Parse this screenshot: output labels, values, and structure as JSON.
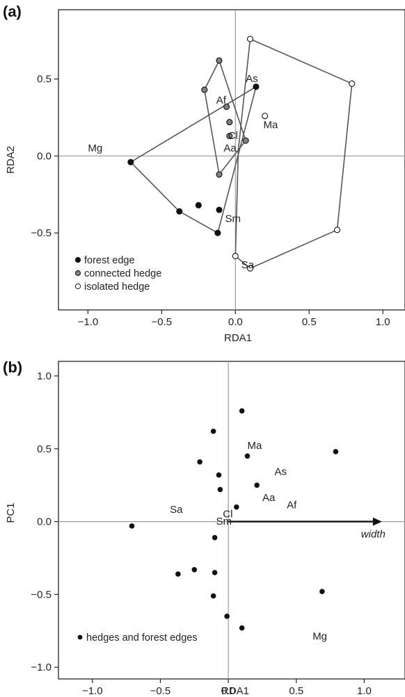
{
  "chart_data": [
    {
      "panel_label": "(a)",
      "type": "scatter",
      "xlabel": "RDA1",
      "ylabel": "RDA2",
      "xlim": [
        -1.2,
        1.15
      ],
      "ylim": [
        -1.0,
        0.95
      ],
      "xticks": [
        -1.0,
        -0.5,
        0.0,
        0.5,
        1.0
      ],
      "xtick_labels": [
        "−1.0",
        "−0.5",
        "0.0",
        "0.5",
        "1.0"
      ],
      "yticks": [
        -0.5,
        0.0,
        0.5
      ],
      "ytick_labels": [
        "−0.5",
        "0.0",
        "0.5"
      ],
      "zero_lines": true,
      "legend_position": "bottom-left",
      "series": [
        {
          "name": "forest edge",
          "color": "#111111",
          "x": [
            -0.71,
            -0.38,
            -0.25,
            -0.11,
            -0.12,
            0.14
          ],
          "y": [
            -0.04,
            -0.36,
            -0.32,
            -0.35,
            -0.5,
            0.45
          ],
          "hull": [
            [
              -0.71,
              -0.04
            ],
            [
              0.14,
              0.45
            ],
            [
              -0.12,
              -0.5
            ],
            [
              -0.38,
              -0.36
            ]
          ]
        },
        {
          "name": "connected hedge",
          "color": "#808080",
          "x": [
            -0.11,
            -0.21,
            -0.06,
            -0.04,
            -0.04,
            0.07,
            -0.11
          ],
          "y": [
            0.62,
            0.43,
            0.32,
            0.22,
            0.13,
            0.1,
            -0.12
          ],
          "hull": [
            [
              -0.11,
              0.62
            ],
            [
              0.07,
              0.1
            ],
            [
              -0.11,
              -0.12
            ],
            [
              -0.21,
              0.43
            ]
          ]
        },
        {
          "name": "isolated hedge",
          "color": "#ffffff",
          "x": [
            0.1,
            0.79,
            0.69,
            0.0,
            0.1,
            0.2
          ],
          "y": [
            0.76,
            0.47,
            -0.48,
            -0.65,
            -0.73,
            0.26
          ],
          "hull": [
            [
              0.1,
              0.76
            ],
            [
              0.79,
              0.47
            ],
            [
              0.69,
              -0.48
            ],
            [
              0.1,
              -0.73
            ],
            [
              0.0,
              -0.65
            ],
            [
              0.02,
              0.04
            ]
          ]
        }
      ],
      "species_labels": [
        {
          "text": "As",
          "x": 0.07,
          "y": 0.48
        },
        {
          "text": "Af",
          "x": -0.13,
          "y": 0.34
        },
        {
          "text": "Ma",
          "x": 0.19,
          "y": 0.18
        },
        {
          "text": "Cl",
          "x": -0.05,
          "y": 0.11
        },
        {
          "text": "Aa",
          "x": -0.08,
          "y": 0.03
        },
        {
          "text": "Mg",
          "x": -1.0,
          "y": 0.03
        },
        {
          "text": "Sm",
          "x": -0.07,
          "y": -0.43
        },
        {
          "text": "Sa",
          "x": 0.04,
          "y": -0.73
        }
      ]
    },
    {
      "panel_label": "(b)",
      "type": "scatter",
      "xlabel": "RDA1",
      "ylabel": "PC1",
      "xlim": [
        -1.25,
        1.3
      ],
      "ylim": [
        -1.08,
        1.1
      ],
      "xticks": [
        -1.0,
        -0.5,
        0.0,
        0.5,
        1.0
      ],
      "xtick_labels": [
        "−1.0",
        "−0.5",
        "0.0",
        "0.5",
        "1.0"
      ],
      "yticks": [
        -1.0,
        -0.5,
        0.0,
        0.5,
        1.0
      ],
      "ytick_labels": [
        "−1.0",
        "−0.5",
        "0.0",
        "0.5",
        "1.0"
      ],
      "zero_lines": true,
      "legend_position": "bottom-left",
      "series": [
        {
          "name": "hedges and forest edges",
          "color": "#111111",
          "x": [
            0.1,
            -0.11,
            -0.21,
            0.14,
            0.79,
            -0.07,
            -0.06,
            0.21,
            0.06,
            -0.71,
            -0.1,
            -0.37,
            -0.25,
            -0.1,
            0.69,
            -0.11,
            -0.01,
            0.1
          ],
          "y": [
            0.76,
            0.62,
            0.41,
            0.45,
            0.48,
            0.32,
            0.22,
            0.25,
            0.1,
            -0.03,
            -0.11,
            -0.36,
            -0.33,
            -0.35,
            -0.48,
            -0.51,
            -0.65,
            -0.73
          ]
        }
      ],
      "species_labels": [
        {
          "text": "Ma",
          "x": 0.14,
          "y": 0.5
        },
        {
          "text": "As",
          "x": 0.34,
          "y": 0.32
        },
        {
          "text": "Aa",
          "x": 0.25,
          "y": 0.14
        },
        {
          "text": "Af",
          "x": 0.43,
          "y": 0.09
        },
        {
          "text": "Sa",
          "x": -0.43,
          "y": 0.06
        },
        {
          "text": "Cl",
          "x": -0.04,
          "y": 0.03
        },
        {
          "text": "Sm",
          "x": -0.09,
          "y": -0.02
        },
        {
          "text": "Mg",
          "x": 0.62,
          "y": -0.81
        }
      ],
      "vector": {
        "label": "width",
        "x_end": 1.13,
        "y_end": 0.0
      }
    }
  ]
}
